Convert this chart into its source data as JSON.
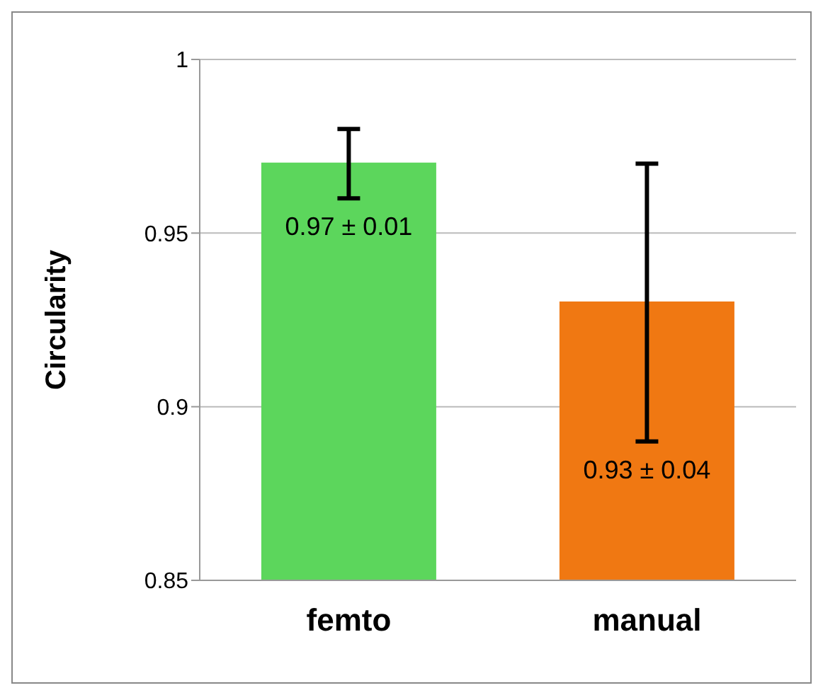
{
  "chart_data": {
    "type": "bar",
    "ylabel": "Circularity",
    "categories": [
      "femto",
      "manual"
    ],
    "values": [
      0.97,
      0.93
    ],
    "colors": [
      "#5cd65c",
      "#f07812"
    ],
    "errors": [
      0.01,
      0.04
    ],
    "value_labels": [
      "0.97 ± 0.01",
      "0.93 ± 0.04"
    ],
    "ylim": [
      0.85,
      1
    ],
    "yticks": [
      0.85,
      0.9,
      0.95,
      1
    ],
    "grid": "y",
    "legend": false
  }
}
